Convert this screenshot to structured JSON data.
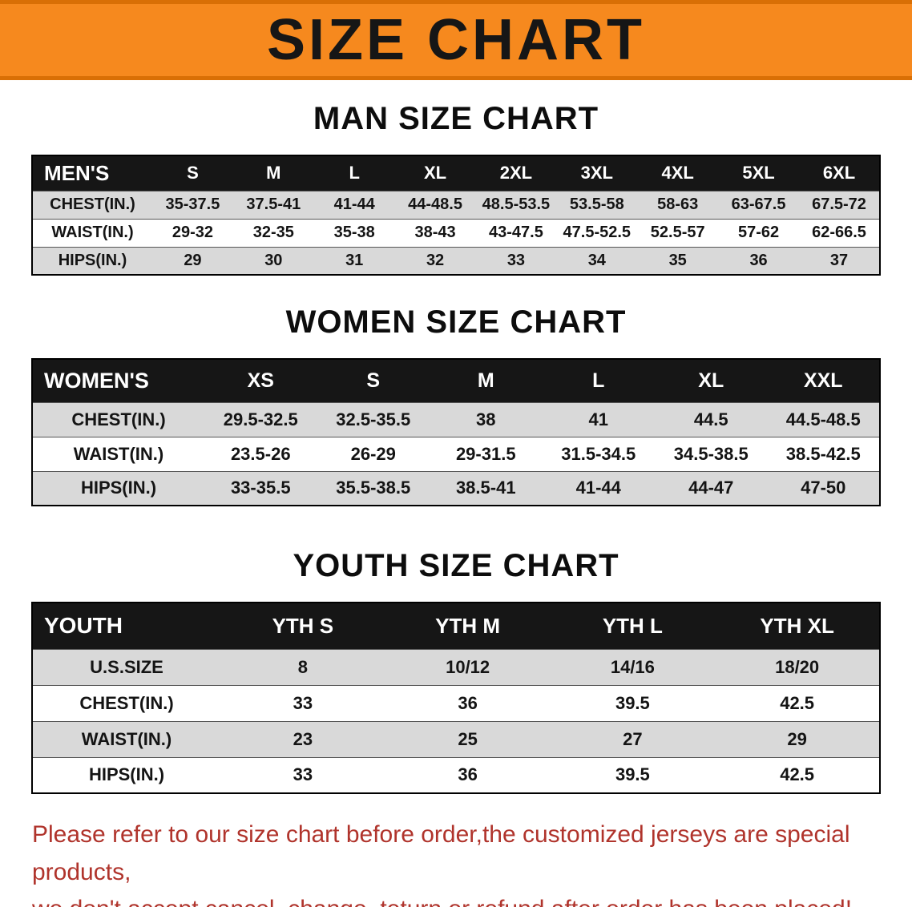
{
  "banner": {
    "title": "SIZE CHART",
    "bg_color": "#f6891e",
    "edge_color": "#d96f05"
  },
  "sections": [
    {
      "heading": "MAN SIZE CHART",
      "table": {
        "header": [
          "MEN'S",
          "S",
          "M",
          "L",
          "XL",
          "2XL",
          "3XL",
          "4XL",
          "5XL",
          "6XL"
        ],
        "rows": [
          [
            "CHEST(IN.)",
            "35-37.5",
            "37.5-41",
            "41-44",
            "44-48.5",
            "48.5-53.5",
            "53.5-58",
            "58-63",
            "63-67.5",
            "67.5-72"
          ],
          [
            "WAIST(IN.)",
            "29-32",
            "32-35",
            "35-38",
            "38-43",
            "43-47.5",
            "47.5-52.5",
            "52.5-57",
            "57-62",
            "62-66.5"
          ],
          [
            "HIPS(IN.)",
            "29",
            "30",
            "31",
            "32",
            "33",
            "34",
            "35",
            "36",
            "37"
          ]
        ]
      }
    },
    {
      "heading": "WOMEN SIZE CHART",
      "table": {
        "header": [
          "WOMEN'S",
          "XS",
          "S",
          "M",
          "L",
          "XL",
          "XXL"
        ],
        "rows": [
          [
            "CHEST(IN.)",
            "29.5-32.5",
            "32.5-35.5",
            "38",
            "41",
            "44.5",
            "44.5-48.5"
          ],
          [
            "WAIST(IN.)",
            "23.5-26",
            "26-29",
            "29-31.5",
            "31.5-34.5",
            "34.5-38.5",
            "38.5-42.5"
          ],
          [
            "HIPS(IN.)",
            "33-35.5",
            "35.5-38.5",
            "38.5-41",
            "41-44",
            "44-47",
            "47-50"
          ]
        ]
      }
    },
    {
      "heading": "YOUTH SIZE CHART",
      "table": {
        "header": [
          "YOUTH",
          "YTH S",
          "YTH M",
          "YTH L",
          "YTH XL"
        ],
        "rows": [
          [
            "U.S.SIZE",
            "8",
            "10/12",
            "14/16",
            "18/20"
          ],
          [
            "CHEST(IN.)",
            "33",
            "36",
            "39.5",
            "42.5"
          ],
          [
            "WAIST(IN.)",
            "23",
            "25",
            "27",
            "29"
          ],
          [
            "HIPS(IN.)",
            "33",
            "36",
            "39.5",
            "42.5"
          ]
        ]
      }
    }
  ],
  "footer": {
    "line1": "Please refer to our size chart before order,the customized jerseys are special products,",
    "line2": "we don't accept cancel, change, teturn or refund after order has been placed!"
  },
  "colors": {
    "header_bar": "#161616",
    "row_gray": "#d9d9d9",
    "row_white": "#ffffff",
    "notice_red": "#b0342c"
  }
}
